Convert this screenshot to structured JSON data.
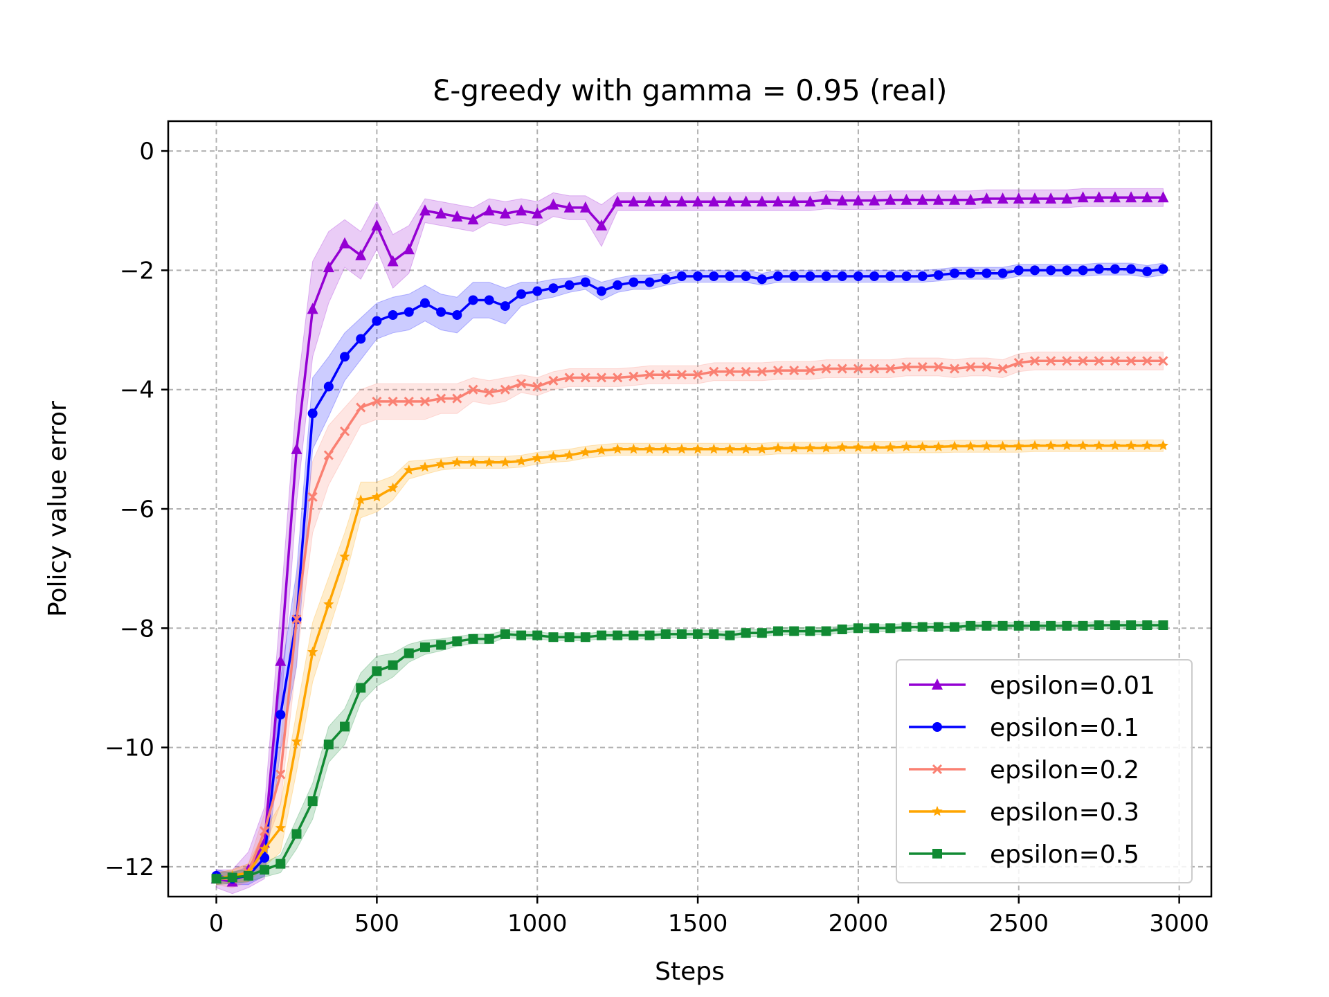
{
  "chart_data": {
    "type": "line",
    "title": "Ɛ-greedy with gamma = 0.95 (real)",
    "xlabel": "Steps",
    "ylabel": "Policy value error",
    "xlim": [
      -150,
      3100
    ],
    "ylim": [
      -12.5,
      0.5
    ],
    "xticks": [
      0,
      500,
      1000,
      1500,
      2000,
      2500,
      3000
    ],
    "yticks": [
      0,
      -2,
      -4,
      -6,
      -8,
      -10,
      -12
    ],
    "xtick_labels": [
      "0",
      "500",
      "1000",
      "1500",
      "2000",
      "2500",
      "3000"
    ],
    "ytick_labels": [
      "0",
      "−2",
      "−4",
      "−6",
      "−8",
      "−10",
      "−12"
    ],
    "grid": true,
    "legend_position": "lower-right",
    "x_step": 50,
    "series": [
      {
        "name": "epsilon=0.01",
        "color": "#9400d3",
        "marker": "triangle",
        "values": [
          -12.2,
          -12.25,
          -12.05,
          -11.6,
          -8.55,
          -5.0,
          -2.65,
          -1.95,
          -1.55,
          -1.75,
          -1.25,
          -1.85,
          -1.65,
          -1.0,
          -1.05,
          -1.1,
          -1.15,
          -1.0,
          -1.05,
          -1.0,
          -1.05,
          -0.9,
          -0.95,
          -0.95,
          -1.25,
          -0.85,
          -0.85,
          -0.85,
          -0.85,
          -0.85,
          -0.85,
          -0.85,
          -0.85,
          -0.85,
          -0.85,
          -0.85,
          -0.85,
          -0.85,
          -0.82,
          -0.83,
          -0.83,
          -0.83,
          -0.82,
          -0.82,
          -0.82,
          -0.82,
          -0.82,
          -0.82,
          -0.8,
          -0.8,
          -0.8,
          -0.8,
          -0.8,
          -0.8,
          -0.78,
          -0.78,
          -0.78,
          -0.78,
          -0.78,
          -0.78
        ],
        "band": [
          0.15,
          0.2,
          0.3,
          0.6,
          0.9,
          0.9,
          0.8,
          0.6,
          0.4,
          0.4,
          0.4,
          0.45,
          0.4,
          0.2,
          0.2,
          0.2,
          0.2,
          0.2,
          0.2,
          0.2,
          0.2,
          0.2,
          0.2,
          0.2,
          0.35,
          0.15,
          0.15,
          0.15,
          0.15,
          0.15,
          0.15,
          0.15,
          0.15,
          0.15,
          0.15,
          0.15,
          0.15,
          0.15,
          0.15,
          0.15,
          0.15,
          0.15,
          0.15,
          0.15,
          0.15,
          0.15,
          0.15,
          0.15,
          0.15,
          0.15,
          0.15,
          0.15,
          0.15,
          0.15,
          0.15,
          0.15,
          0.15,
          0.15,
          0.15,
          0.15
        ]
      },
      {
        "name": "epsilon=0.1",
        "color": "#0000ff",
        "marker": "circle",
        "values": [
          -12.15,
          -12.2,
          -12.15,
          -11.85,
          -9.45,
          -7.85,
          -4.4,
          -3.95,
          -3.45,
          -3.15,
          -2.85,
          -2.75,
          -2.7,
          -2.55,
          -2.7,
          -2.75,
          -2.5,
          -2.5,
          -2.6,
          -2.4,
          -2.35,
          -2.3,
          -2.25,
          -2.2,
          -2.35,
          -2.25,
          -2.2,
          -2.2,
          -2.15,
          -2.1,
          -2.1,
          -2.1,
          -2.1,
          -2.1,
          -2.15,
          -2.1,
          -2.1,
          -2.1,
          -2.1,
          -2.1,
          -2.1,
          -2.1,
          -2.1,
          -2.1,
          -2.1,
          -2.08,
          -2.05,
          -2.05,
          -2.05,
          -2.05,
          -2.0,
          -2.0,
          -2.0,
          -2.0,
          -2.0,
          -1.98,
          -1.98,
          -1.98,
          -2.02,
          -1.98
        ],
        "band": [
          0.1,
          0.1,
          0.15,
          0.3,
          0.6,
          0.8,
          0.6,
          0.5,
          0.4,
          0.35,
          0.3,
          0.3,
          0.3,
          0.3,
          0.3,
          0.3,
          0.3,
          0.3,
          0.3,
          0.2,
          0.15,
          0.15,
          0.12,
          0.12,
          0.15,
          0.12,
          0.12,
          0.12,
          0.1,
          0.1,
          0.1,
          0.1,
          0.1,
          0.1,
          0.1,
          0.1,
          0.1,
          0.1,
          0.1,
          0.1,
          0.1,
          0.1,
          0.1,
          0.1,
          0.1,
          0.1,
          0.1,
          0.1,
          0.1,
          0.1,
          0.1,
          0.1,
          0.1,
          0.1,
          0.1,
          0.1,
          0.1,
          0.1,
          0.1,
          0.1
        ]
      },
      {
        "name": "epsilon=0.2",
        "color": "#fa8072",
        "marker": "x",
        "values": [
          -12.2,
          -12.2,
          -12.1,
          -11.4,
          -10.45,
          -7.85,
          -5.8,
          -5.1,
          -4.7,
          -4.3,
          -4.2,
          -4.2,
          -4.2,
          -4.2,
          -4.15,
          -4.15,
          -4.0,
          -4.05,
          -4.0,
          -3.9,
          -3.95,
          -3.85,
          -3.8,
          -3.8,
          -3.8,
          -3.8,
          -3.78,
          -3.75,
          -3.75,
          -3.75,
          -3.75,
          -3.7,
          -3.7,
          -3.7,
          -3.7,
          -3.68,
          -3.68,
          -3.68,
          -3.65,
          -3.65,
          -3.65,
          -3.65,
          -3.65,
          -3.62,
          -3.62,
          -3.62,
          -3.65,
          -3.62,
          -3.62,
          -3.65,
          -3.55,
          -3.52,
          -3.52,
          -3.52,
          -3.52,
          -3.52,
          -3.52,
          -3.52,
          -3.52,
          -3.52
        ],
        "band": [
          0.1,
          0.15,
          0.15,
          0.3,
          0.5,
          0.7,
          0.6,
          0.5,
          0.4,
          0.3,
          0.3,
          0.3,
          0.3,
          0.3,
          0.25,
          0.25,
          0.2,
          0.2,
          0.2,
          0.15,
          0.15,
          0.15,
          0.15,
          0.15,
          0.15,
          0.15,
          0.15,
          0.15,
          0.15,
          0.15,
          0.15,
          0.15,
          0.15,
          0.15,
          0.15,
          0.15,
          0.15,
          0.15,
          0.15,
          0.15,
          0.15,
          0.15,
          0.15,
          0.15,
          0.15,
          0.15,
          0.15,
          0.15,
          0.15,
          0.15,
          0.15,
          0.15,
          0.15,
          0.15,
          0.15,
          0.15,
          0.15,
          0.15,
          0.15,
          0.15
        ]
      },
      {
        "name": "epsilon=0.3",
        "color": "#ffa500",
        "marker": "star",
        "values": [
          -12.2,
          -12.15,
          -12.1,
          -11.7,
          -11.35,
          -9.9,
          -8.4,
          -7.6,
          -6.8,
          -5.85,
          -5.8,
          -5.65,
          -5.35,
          -5.3,
          -5.25,
          -5.22,
          -5.22,
          -5.22,
          -5.22,
          -5.2,
          -5.15,
          -5.12,
          -5.1,
          -5.05,
          -5.02,
          -5.0,
          -5.0,
          -5.0,
          -5.0,
          -5.0,
          -5.0,
          -5.0,
          -5.0,
          -5.0,
          -5.0,
          -4.98,
          -4.98,
          -4.98,
          -4.98,
          -4.97,
          -4.97,
          -4.97,
          -4.97,
          -4.96,
          -4.96,
          -4.96,
          -4.95,
          -4.95,
          -4.95,
          -4.95,
          -4.95,
          -4.94,
          -4.94,
          -4.94,
          -4.94,
          -4.94,
          -4.94,
          -4.94,
          -4.94,
          -4.94
        ],
        "band": [
          0.1,
          0.1,
          0.15,
          0.3,
          0.4,
          0.5,
          0.5,
          0.45,
          0.4,
          0.3,
          0.25,
          0.2,
          0.15,
          0.12,
          0.1,
          0.1,
          0.1,
          0.1,
          0.1,
          0.1,
          0.1,
          0.1,
          0.1,
          0.1,
          0.1,
          0.1,
          0.1,
          0.1,
          0.1,
          0.1,
          0.1,
          0.1,
          0.1,
          0.1,
          0.1,
          0.1,
          0.1,
          0.1,
          0.1,
          0.1,
          0.1,
          0.1,
          0.1,
          0.1,
          0.1,
          0.1,
          0.1,
          0.1,
          0.1,
          0.1,
          0.1,
          0.1,
          0.1,
          0.1,
          0.1,
          0.1,
          0.1,
          0.1,
          0.1,
          0.1
        ]
      },
      {
        "name": "epsilon=0.5",
        "color": "#118a33",
        "marker": "square",
        "values": [
          -12.2,
          -12.18,
          -12.15,
          -12.05,
          -11.95,
          -11.45,
          -10.9,
          -9.95,
          -9.65,
          -9.0,
          -8.72,
          -8.62,
          -8.42,
          -8.32,
          -8.28,
          -8.22,
          -8.18,
          -8.18,
          -8.1,
          -8.12,
          -8.12,
          -8.15,
          -8.15,
          -8.15,
          -8.12,
          -8.12,
          -8.12,
          -8.12,
          -8.1,
          -8.1,
          -8.1,
          -8.1,
          -8.12,
          -8.08,
          -8.08,
          -8.05,
          -8.05,
          -8.05,
          -8.05,
          -8.02,
          -8.0,
          -8.0,
          -8.0,
          -7.98,
          -7.98,
          -7.98,
          -7.98,
          -7.96,
          -7.96,
          -7.96,
          -7.96,
          -7.96,
          -7.96,
          -7.96,
          -7.96,
          -7.95,
          -7.95,
          -7.95,
          -7.95,
          -7.95
        ],
        "band": [
          0.1,
          0.1,
          0.1,
          0.12,
          0.15,
          0.25,
          0.3,
          0.3,
          0.3,
          0.25,
          0.25,
          0.2,
          0.15,
          0.12,
          0.1,
          0.08,
          0.08,
          0.08,
          0.06,
          0.06,
          0.06,
          0.06,
          0.06,
          0.06,
          0.06,
          0.06,
          0.06,
          0.06,
          0.06,
          0.06,
          0.06,
          0.06,
          0.06,
          0.06,
          0.06,
          0.06,
          0.06,
          0.06,
          0.06,
          0.06,
          0.06,
          0.06,
          0.06,
          0.06,
          0.06,
          0.06,
          0.06,
          0.06,
          0.06,
          0.06,
          0.06,
          0.06,
          0.06,
          0.06,
          0.06,
          0.06,
          0.06,
          0.06,
          0.06,
          0.06
        ]
      }
    ]
  }
}
